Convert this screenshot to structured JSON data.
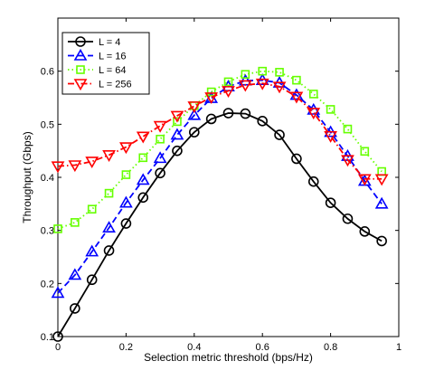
{
  "chart_data": {
    "type": "line",
    "title": "",
    "xlabel": "Selection metric threshold (bps/Hz)",
    "ylabel": "Throughput (Gbps)",
    "xlim": [
      0,
      1
    ],
    "ylim": [
      0.1,
      0.7
    ],
    "xticks": [
      "0",
      "0.2",
      "0.4",
      "0.6",
      "0.8",
      "1"
    ],
    "yticks": [
      "0.1",
      "0.2",
      "0.3",
      "0.4",
      "0.5",
      "0.6"
    ],
    "grid": false,
    "legend_position": "top-left",
    "x": [
      0,
      0.05,
      0.1,
      0.15,
      0.2,
      0.25,
      0.3,
      0.35,
      0.4,
      0.45,
      0.5,
      0.55,
      0.6,
      0.65,
      0.7,
      0.75,
      0.8,
      0.85,
      0.9,
      0.95
    ],
    "series": [
      {
        "name": "L = 4",
        "color": "#000000",
        "marker": "circle",
        "line_style": "solid",
        "values": [
          0.1,
          0.153,
          0.207,
          0.262,
          0.313,
          0.362,
          0.408,
          0.45,
          0.485,
          0.51,
          0.521,
          0.52,
          0.506,
          0.48,
          0.435,
          0.392,
          0.352,
          0.322,
          0.298,
          0.28
        ]
      },
      {
        "name": "L = 16",
        "color": "#0000ff",
        "marker": "triangle-up",
        "line_style": "dashed",
        "values": [
          0.182,
          0.216,
          0.26,
          0.305,
          0.352,
          0.395,
          0.436,
          0.48,
          0.517,
          0.549,
          0.571,
          0.582,
          0.583,
          0.578,
          0.555,
          0.527,
          0.485,
          0.44,
          0.393,
          0.35
        ]
      },
      {
        "name": "L = 64",
        "color": "#66ff00",
        "marker": "square",
        "line_style": "dotted",
        "values": [
          0.303,
          0.315,
          0.34,
          0.37,
          0.405,
          0.437,
          0.472,
          0.505,
          0.535,
          0.561,
          0.58,
          0.594,
          0.6,
          0.598,
          0.583,
          0.557,
          0.528,
          0.491,
          0.449,
          0.411
        ]
      },
      {
        "name": "L = 256",
        "color": "#ff0000",
        "marker": "triangle-down",
        "line_style": "dash-dot",
        "values": [
          0.421,
          0.423,
          0.43,
          0.442,
          0.457,
          0.477,
          0.497,
          0.516,
          0.534,
          0.551,
          0.563,
          0.574,
          0.577,
          0.571,
          0.552,
          0.522,
          0.478,
          0.433,
          0.397,
          0.397
        ]
      }
    ]
  }
}
